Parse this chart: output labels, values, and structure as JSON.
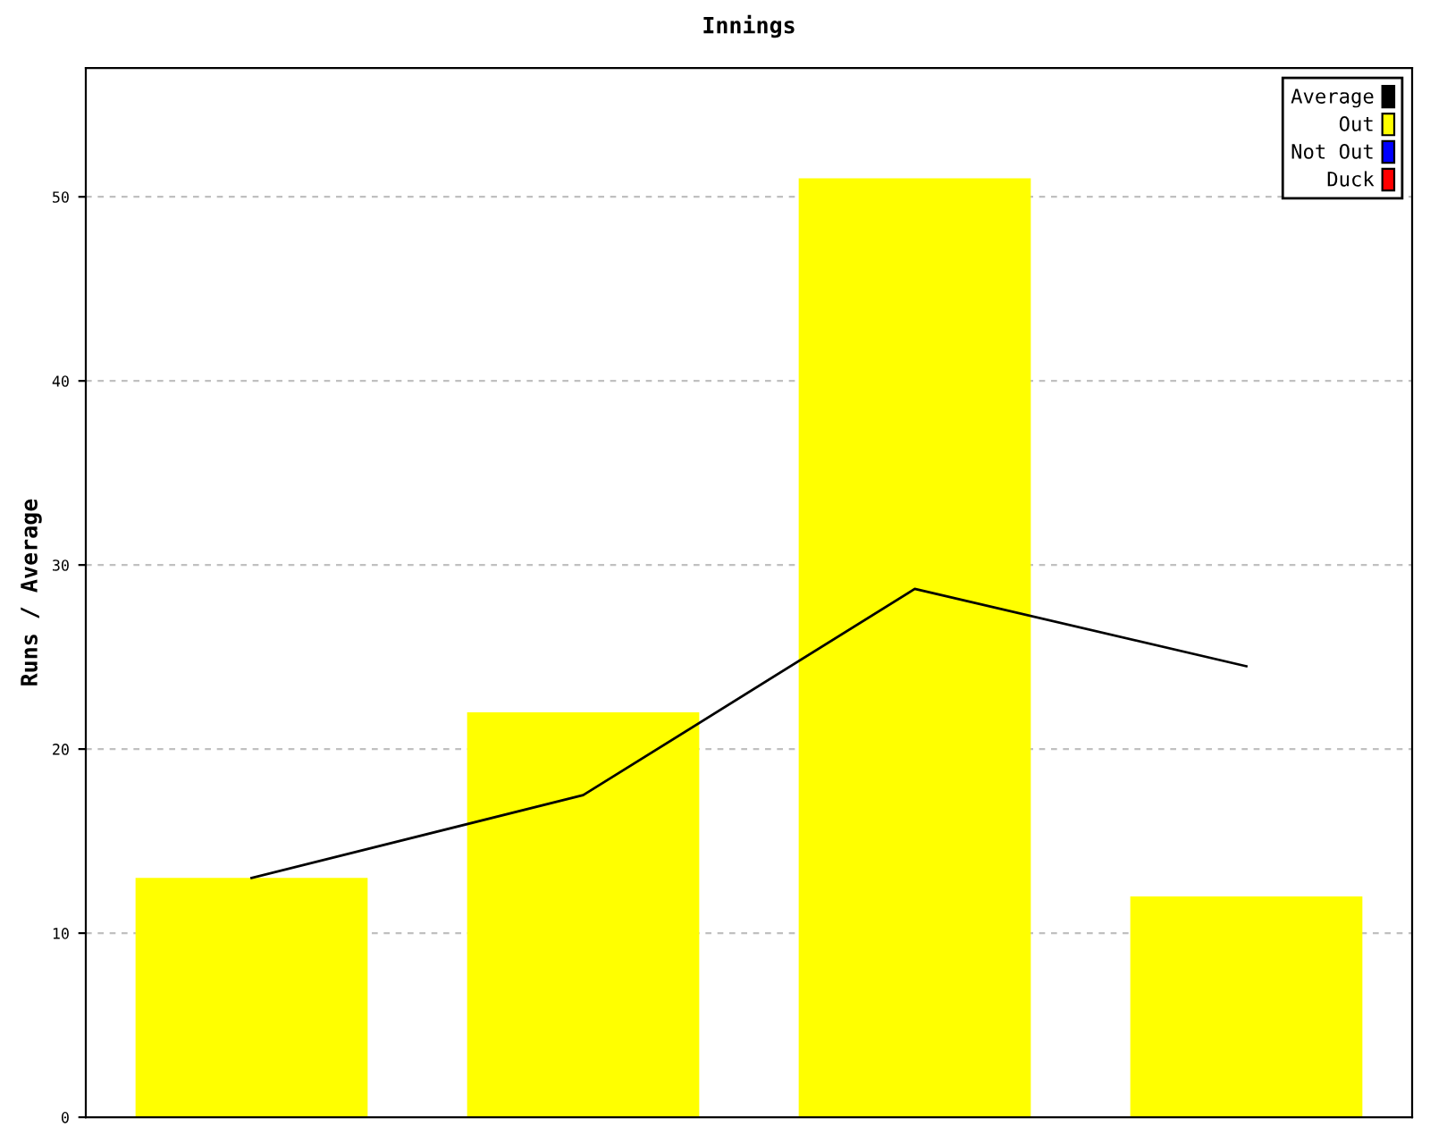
{
  "chart_data": {
    "type": "bar",
    "title": "Innings",
    "ylabel": "Runs / Average",
    "categories": [
      null,
      null,
      null,
      null
    ],
    "series": [
      {
        "name": "Average",
        "type": "line",
        "color": "#000000",
        "values": [
          13,
          17.5,
          28.7,
          24.5
        ]
      },
      {
        "name": "Out",
        "color": "#ffff00",
        "values": [
          13,
          22,
          51,
          12
        ]
      },
      {
        "name": "Not Out",
        "color": "#0000ff",
        "values": [
          null,
          null,
          null,
          null
        ]
      },
      {
        "name": "Duck",
        "color": "#ff0000",
        "values": [
          null,
          null,
          null,
          null
        ]
      }
    ],
    "ylim": [
      0,
      57
    ],
    "yticks": [
      0,
      10,
      20,
      30,
      40,
      50
    ],
    "grid": "y",
    "legend": "top right",
    "tick_labels": "y"
  }
}
